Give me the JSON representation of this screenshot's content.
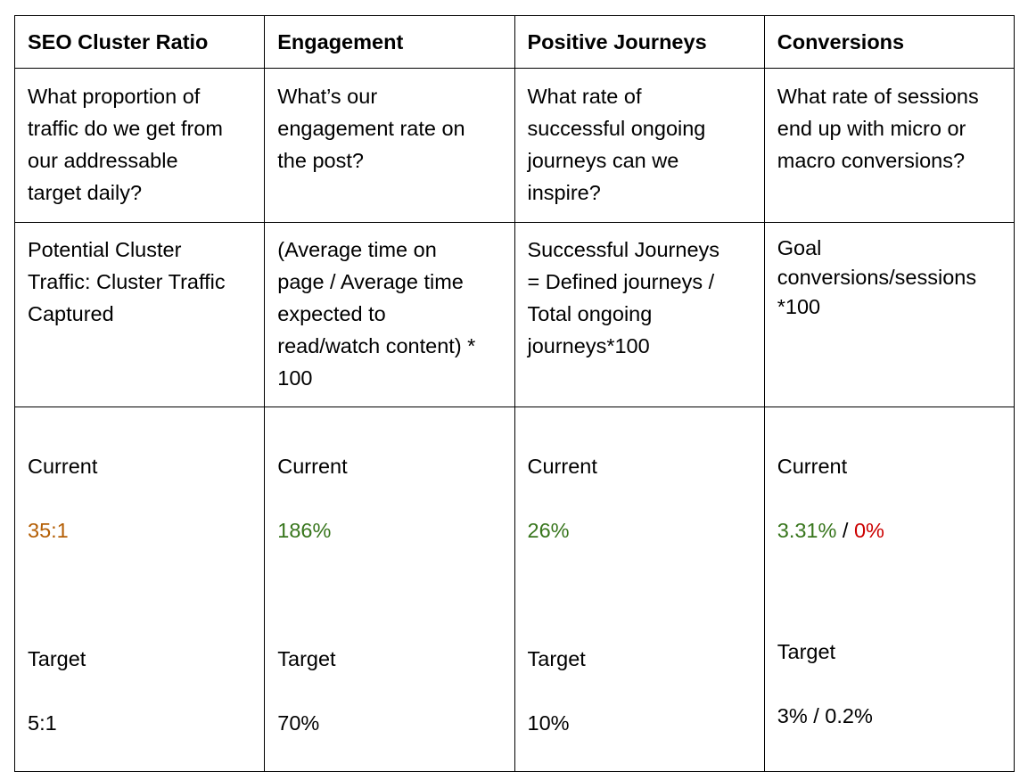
{
  "headers": [
    "SEO Cluster Ratio",
    "Engagement",
    "Positive Journeys",
    "Conversions"
  ],
  "questions": [
    "What proportion of\ntraffic do we get from\nour addressable\ntarget daily?",
    "What’s our\nengagement rate on\nthe post?",
    "What rate of\nsuccessful ongoing\njourneys can we\ninspire?",
    "What rate of sessions\nend up with micro or\nmacro conversions?"
  ],
  "formulas": [
    "Potential Cluster\nTraffic: Cluster Traffic\nCaptured",
    "(Average time on\npage / Average time\nexpected to\nread/watch content) *\n100",
    "Successful Journeys\n= Defined journeys /\nTotal ongoing\njourneys*100",
    "Goal\nconversions/sessions\n*100"
  ],
  "status": {
    "current_label": "Current",
    "target_label": "Target",
    "seo": {
      "current": "35:1",
      "target": "5:1"
    },
    "engagement": {
      "current": "186%",
      "target": "70%"
    },
    "journeys": {
      "current": "26%",
      "target": "10%"
    },
    "conversions": {
      "current_micro": "3.31%",
      "separator": " / ",
      "current_macro": "0%",
      "target": "3% / 0.2%"
    }
  },
  "colors": {
    "warning": "#b45f06",
    "good": "#38761d",
    "bad": "#cc0000",
    "border": "#000000"
  }
}
